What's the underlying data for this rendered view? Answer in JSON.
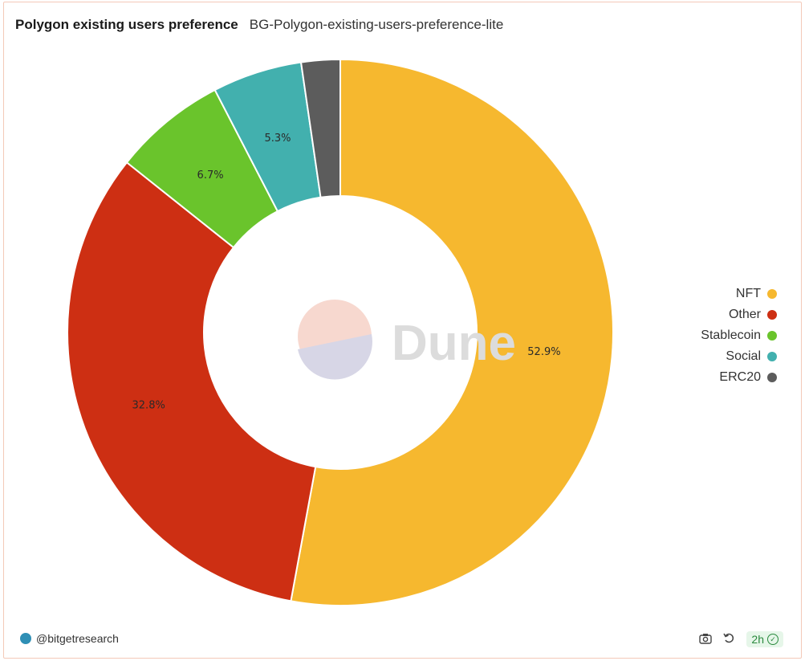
{
  "header": {
    "title": "Polygon existing users preference",
    "subtitle": "BG-Polygon-existing-users-preference-lite"
  },
  "chart_data": {
    "type": "pie",
    "variant": "donut",
    "categories": [
      "NFT",
      "Other",
      "Stablecoin",
      "Social",
      "ERC20"
    ],
    "values": [
      52.9,
      32.8,
      6.7,
      5.3,
      2.3
    ],
    "labels": [
      "52.9%",
      "32.8%",
      "6.7%",
      "5.3%",
      ""
    ],
    "colors": [
      "#f6b82f",
      "#cd2f13",
      "#6ac42c",
      "#42b0ae",
      "#5c5c5c"
    ],
    "legend_position": "right"
  },
  "watermark": {
    "text": "Dune"
  },
  "footer": {
    "handle": "@bitgetresearch",
    "age": "2h",
    "camera_icon": "camera-icon",
    "refresh_icon": "refresh-icon",
    "check_icon": "check-circle-icon"
  }
}
